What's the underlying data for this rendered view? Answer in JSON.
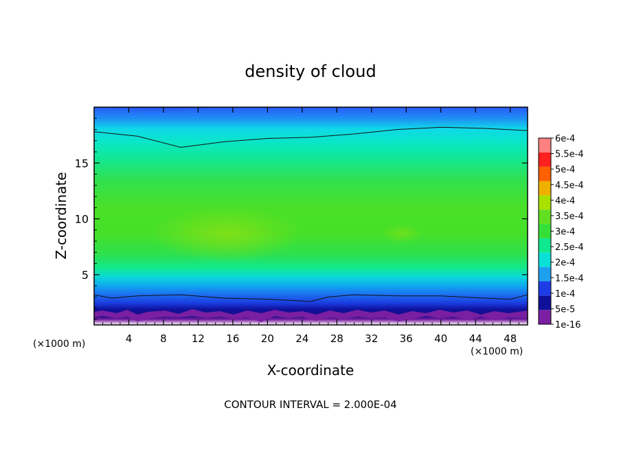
{
  "chart_data": {
    "type": "heatmap",
    "title": "density of cloud",
    "xlabel": "X-coordinate",
    "ylabel": "Z-coordinate",
    "x_unit_left": "(×1000 m)",
    "x_unit_right": "(×1000 m)",
    "footer": "CONTOUR INTERVAL = 2.000E-04",
    "xlim": [
      0,
      50
    ],
    "ylim": [
      0.5,
      20
    ],
    "x_ticks": [
      4,
      8,
      12,
      16,
      20,
      24,
      28,
      32,
      36,
      40,
      44,
      48
    ],
    "y_ticks": [
      5,
      10,
      15
    ],
    "colorbar": {
      "labels": [
        "1e-16",
        "5e-5",
        "1e-4",
        "1.5e-4",
        "2e-4",
        "2.5e-4",
        "3e-4",
        "3.5e-4",
        "4e-4",
        "4.5e-4",
        "5e-4",
        "5.5e-4",
        "6e-4"
      ],
      "colors": [
        "#7a1fa2",
        "#10109a",
        "#1e3ce6",
        "#1ea0f0",
        "#0ae0d8",
        "#10e890",
        "#34e038",
        "#60e020",
        "#a8e000",
        "#f0b000",
        "#ff6000",
        "#ff2020",
        "#ff8080"
      ]
    },
    "contour_levels": [
      {
        "level": "2e-4",
        "z_at_x": [
          [
            0,
            17.8
          ],
          [
            5,
            17.4
          ],
          [
            10,
            16.4
          ],
          [
            15,
            16.9
          ],
          [
            20,
            17.2
          ],
          [
            25,
            17.3
          ],
          [
            30,
            17.6
          ],
          [
            35,
            18.0
          ],
          [
            40,
            18.2
          ],
          [
            45,
            18.1
          ],
          [
            50,
            17.9
          ]
        ]
      },
      {
        "level": "5e-5",
        "z_at_x": [
          [
            0,
            3.2
          ],
          [
            2,
            2.9
          ],
          [
            5,
            3.1
          ],
          [
            10,
            3.2
          ],
          [
            15,
            2.9
          ],
          [
            20,
            2.8
          ],
          [
            25,
            2.6
          ],
          [
            27,
            3.0
          ],
          [
            30,
            3.2
          ],
          [
            35,
            3.1
          ],
          [
            40,
            3.1
          ],
          [
            45,
            2.9
          ],
          [
            48,
            2.8
          ],
          [
            50,
            3.2
          ]
        ]
      }
    ]
  }
}
